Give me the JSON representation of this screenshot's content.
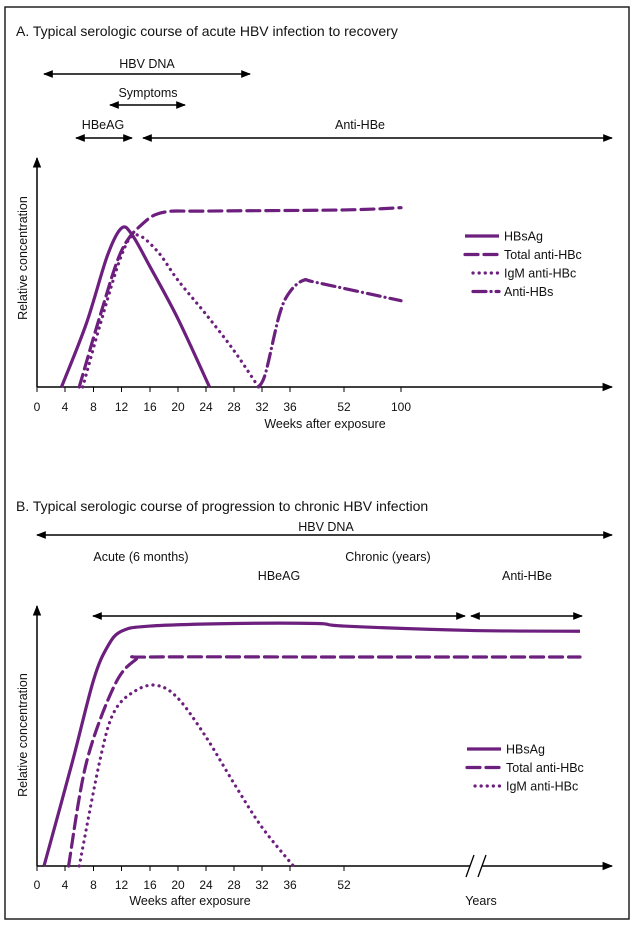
{
  "colors": {
    "series": "#6d1f7e",
    "axis": "#000000"
  },
  "chart_data": [
    {
      "type": "line",
      "title": "A. Typical serologic course of acute HBV infection to recovery",
      "xlabel": "Weeks after exposure",
      "ylabel": "Relative concentration",
      "x_ticks": [
        "0",
        "4",
        "8",
        "12",
        "16",
        "20",
        "24",
        "28",
        "32",
        "36",
        "52",
        "100"
      ],
      "ylim": [
        0,
        1
      ],
      "legend_position": "right",
      "markers": [
        {
          "label": "HBV DNA",
          "from_week": 1,
          "to_week": 30
        },
        {
          "label": "Symptoms",
          "from_week": 10.5,
          "to_week": 21
        },
        {
          "label": "HBeAG",
          "from_week": 5.5,
          "to_week": 13.5
        },
        {
          "label": "Anti-HBe",
          "from_week": 15,
          "to_week": "end"
        }
      ],
      "series": [
        {
          "name": "HBsAg",
          "style": "solid",
          "points": [
            [
              3.5,
              0
            ],
            [
              7,
              0.28
            ],
            [
              10,
              0.58
            ],
            [
              12,
              0.7
            ],
            [
              13.5,
              0.67
            ],
            [
              16,
              0.53
            ],
            [
              20,
              0.3
            ],
            [
              24.5,
              0
            ]
          ]
        },
        {
          "name": "Total anti-HBc",
          "style": "dashed",
          "points": [
            [
              6,
              0
            ],
            [
              9,
              0.32
            ],
            [
              12,
              0.6
            ],
            [
              15,
              0.72
            ],
            [
              18,
              0.77
            ],
            [
              24,
              0.775
            ],
            [
              52,
              0.78
            ],
            [
              100,
              0.79
            ]
          ]
        },
        {
          "name": "IgM anti-HBc",
          "style": "dotted",
          "points": [
            [
              6.5,
              0
            ],
            [
              9,
              0.28
            ],
            [
              12,
              0.58
            ],
            [
              14,
              0.67
            ],
            [
              17,
              0.6
            ],
            [
              20,
              0.47
            ],
            [
              24,
              0.32
            ],
            [
              28,
              0.16
            ],
            [
              31.5,
              0
            ]
          ]
        },
        {
          "name": "Anti-HBs",
          "style": "dash-dot",
          "points": [
            [
              31.5,
              0
            ],
            [
              32.5,
              0.06
            ],
            [
              34.5,
              0.32
            ],
            [
              36,
              0.42
            ],
            [
              40,
              0.47
            ],
            [
              44,
              0.46
            ],
            [
              100,
              0.38
            ]
          ]
        }
      ]
    },
    {
      "type": "line",
      "title": "B. Typical serologic course of progression to chronic HBV infection",
      "xlabel": "Weeks after exposure",
      "x2label": "Years",
      "ylabel": "Relative concentration",
      "x_ticks": [
        "0",
        "4",
        "8",
        "12",
        "16",
        "20",
        "24",
        "28",
        "32",
        "36",
        "52"
      ],
      "axis_break": true,
      "ylim": [
        0,
        1
      ],
      "legend_position": "right",
      "phases": [
        "Acute (6 months)",
        "Chronic (years)"
      ],
      "markers": [
        {
          "label": "HBV DNA",
          "from_week": 0,
          "to_week": "end"
        },
        {
          "label": "HBeAG",
          "from_week": 8,
          "to_week": "years"
        },
        {
          "label": "Anti-HBe",
          "from_week": "years",
          "to_week": "end"
        }
      ],
      "series": [
        {
          "name": "HBsAg",
          "style": "solid",
          "points": [
            [
              1,
              0
            ],
            [
              5,
              0.4
            ],
            [
              8,
              0.72
            ],
            [
              10,
              0.85
            ],
            [
              12,
              0.91
            ],
            [
              16,
              0.93
            ],
            [
              28,
              0.94
            ],
            [
              44,
              0.94
            ],
            [
              52,
              0.93
            ]
          ],
          "end_value": 0.91
        },
        {
          "name": "Total anti-HBc",
          "style": "dashed",
          "points": [
            [
              4.5,
              0
            ],
            [
              7,
              0.4
            ],
            [
              11,
              0.7
            ],
            [
              14,
              0.8
            ],
            [
              16,
              0.81
            ],
            [
              52,
              0.81
            ]
          ],
          "end_value": 0.81
        },
        {
          "name": "IgM anti-HBc",
          "style": "dotted",
          "points": [
            [
              6,
              0
            ],
            [
              9,
              0.42
            ],
            [
              11,
              0.6
            ],
            [
              14,
              0.68
            ],
            [
              17,
              0.7
            ],
            [
              20,
              0.65
            ],
            [
              24,
              0.5
            ],
            [
              28,
              0.32
            ],
            [
              32,
              0.15
            ],
            [
              37,
              0
            ]
          ]
        }
      ]
    }
  ]
}
